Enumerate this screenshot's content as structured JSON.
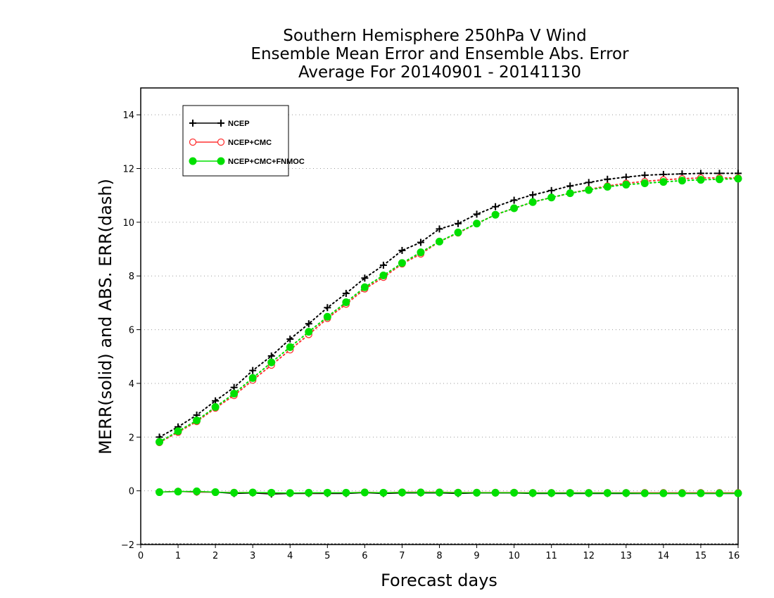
{
  "chart_data": {
    "type": "line",
    "title": [
      "Southern Hemisphere 250hPa V Wind",
      "Ensemble Mean Error and Ensemble Abs. Error",
      "Average For 20140901 - 20141130"
    ],
    "xlabel": "Forecast days",
    "ylabel": "MERR(solid) and ABS. ERR(dash)",
    "xlim": [
      0,
      16
    ],
    "ylim": [
      -2,
      15
    ],
    "x_ticks": [
      0,
      1,
      2,
      3,
      4,
      5,
      6,
      7,
      8,
      9,
      10,
      11,
      12,
      13,
      14,
      15,
      16
    ],
    "y_ticks": [
      -2,
      0,
      2,
      4,
      6,
      8,
      10,
      12,
      14
    ],
    "grid": "horizontal dotted",
    "legend_position": "top-left",
    "x": [
      0.5,
      1,
      1.5,
      2,
      2.5,
      3,
      3.5,
      4,
      4.5,
      5,
      5.5,
      6,
      6.5,
      7,
      7.5,
      8,
      8.5,
      9,
      9.5,
      10,
      10.5,
      11,
      11.5,
      12,
      12.5,
      13,
      13.5,
      14,
      14.5,
      15,
      15.5,
      16
    ],
    "series": [
      {
        "name": "NCEP",
        "color": "#000000",
        "marker": "plus",
        "merr": [
          -0.05,
          -0.02,
          -0.05,
          -0.05,
          -0.1,
          -0.08,
          -0.12,
          -0.1,
          -0.1,
          -0.1,
          -0.1,
          -0.07,
          -0.1,
          -0.08,
          -0.08,
          -0.08,
          -0.1,
          -0.08,
          -0.08,
          -0.08,
          -0.1,
          -0.1,
          -0.1,
          -0.1,
          -0.1,
          -0.1,
          -0.1,
          -0.1,
          -0.1,
          -0.1,
          -0.1,
          -0.1
        ],
        "abs_err": [
          2.0,
          2.38,
          2.82,
          3.35,
          3.85,
          4.48,
          5.02,
          5.65,
          6.22,
          6.82,
          7.35,
          7.92,
          8.4,
          8.95,
          9.25,
          9.75,
          9.95,
          10.3,
          10.58,
          10.82,
          11.02,
          11.18,
          11.35,
          11.48,
          11.6,
          11.68,
          11.75,
          11.78,
          11.8,
          11.82,
          11.82,
          11.82
        ]
      },
      {
        "name": "NCEP+CMC",
        "color": "#ff3333",
        "marker": "open-circle",
        "merr": [
          -0.05,
          -0.02,
          -0.04,
          -0.05,
          -0.06,
          -0.06,
          -0.08,
          -0.08,
          -0.08,
          -0.07,
          -0.07,
          -0.05,
          -0.07,
          -0.05,
          -0.05,
          -0.05,
          -0.06,
          -0.06,
          -0.06,
          -0.06,
          -0.07,
          -0.07,
          -0.07,
          -0.07,
          -0.07,
          -0.07,
          -0.07,
          -0.07,
          -0.07,
          -0.07,
          -0.07,
          -0.07
        ],
        "abs_err": [
          1.8,
          2.18,
          2.58,
          3.08,
          3.55,
          4.12,
          4.68,
          5.25,
          5.82,
          6.42,
          6.95,
          7.52,
          7.95,
          8.45,
          8.82,
          9.28,
          9.6,
          9.95,
          10.28,
          10.52,
          10.75,
          10.92,
          11.08,
          11.22,
          11.35,
          11.45,
          11.52,
          11.58,
          11.62,
          11.65,
          11.65,
          11.65
        ]
      },
      {
        "name": "NCEP+CMC+FNMOC",
        "color": "#00e000",
        "marker": "filled-circle",
        "merr": [
          -0.05,
          -0.03,
          -0.02,
          -0.05,
          -0.07,
          -0.06,
          -0.07,
          -0.08,
          -0.07,
          -0.07,
          -0.07,
          -0.06,
          -0.07,
          -0.06,
          -0.06,
          -0.06,
          -0.07,
          -0.07,
          -0.07,
          -0.07,
          -0.08,
          -0.08,
          -0.08,
          -0.08,
          -0.08,
          -0.08,
          -0.09,
          -0.09,
          -0.09,
          -0.09,
          -0.09,
          -0.09
        ],
        "abs_err": [
          1.82,
          2.22,
          2.62,
          3.12,
          3.62,
          4.2,
          4.78,
          5.35,
          5.92,
          6.48,
          7.02,
          7.58,
          8.02,
          8.48,
          8.88,
          9.28,
          9.62,
          9.95,
          10.28,
          10.52,
          10.75,
          10.92,
          11.08,
          11.2,
          11.32,
          11.4,
          11.45,
          11.5,
          11.55,
          11.58,
          11.6,
          11.62
        ]
      }
    ]
  }
}
